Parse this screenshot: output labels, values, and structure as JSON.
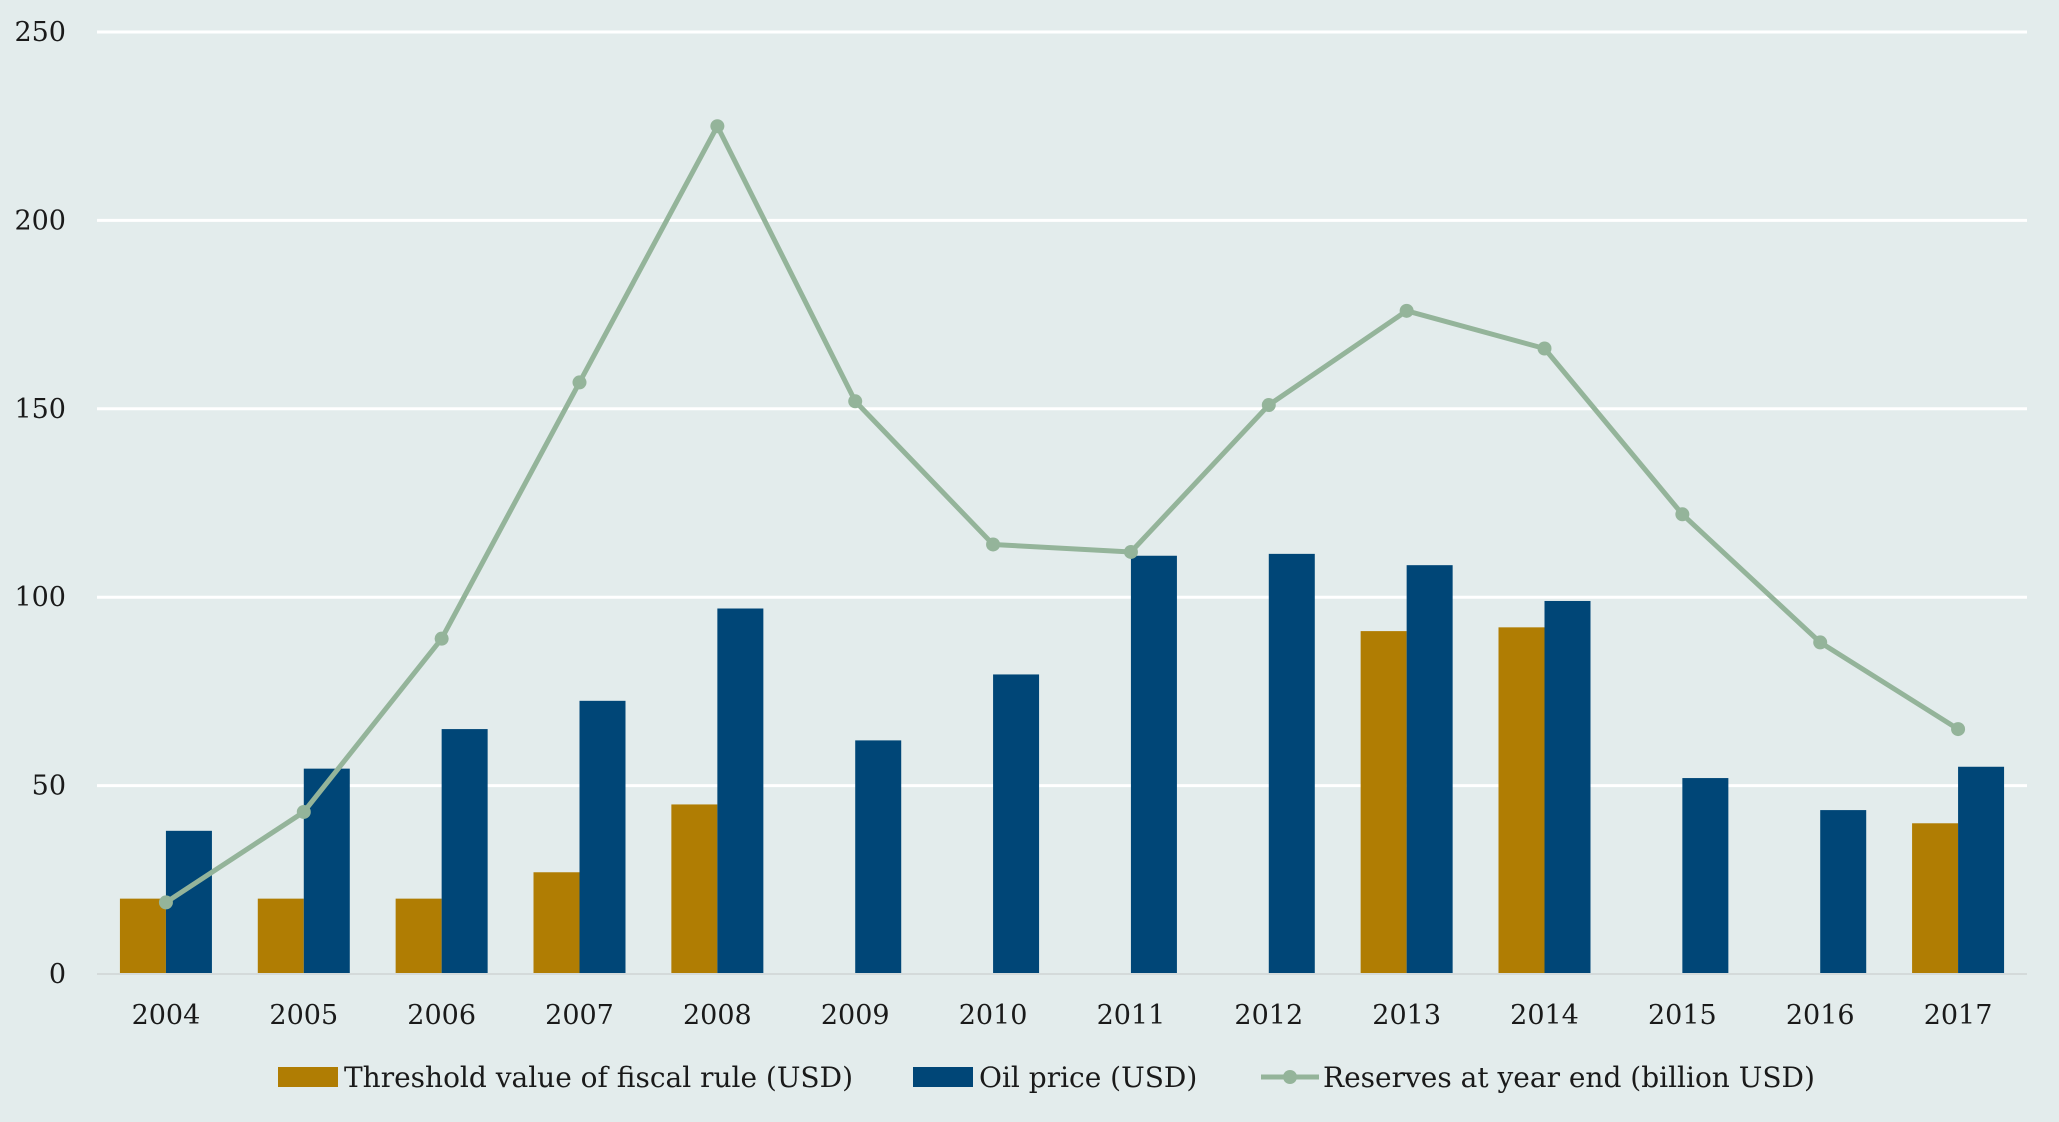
{
  "chart_data": {
    "type": "bar",
    "title": "",
    "xlabel": "",
    "ylabel": "",
    "categories": [
      "2004",
      "2005",
      "2006",
      "2007",
      "2008",
      "2009",
      "2010",
      "2011",
      "2012",
      "2013",
      "2014",
      "2015",
      "2016",
      "2017"
    ],
    "ylim": [
      0,
      250
    ],
    "yticks": [
      0,
      50,
      100,
      150,
      200,
      250
    ],
    "grid": true,
    "legend_position": "bottom",
    "series": [
      {
        "name": "Threshold value of fiscal rule (USD)",
        "type": "bar",
        "color": "#b07d03",
        "values": [
          20,
          20,
          20,
          27,
          45,
          null,
          null,
          null,
          null,
          91,
          92,
          null,
          null,
          40
        ]
      },
      {
        "name": "Oil price (USD)",
        "type": "bar",
        "color": "#004677",
        "values": [
          38,
          54.5,
          65,
          72.5,
          97,
          62,
          79.5,
          111,
          111.5,
          108.5,
          99,
          52,
          43.5,
          55
        ]
      },
      {
        "name": "Reserves at year end (billion USD)",
        "type": "line",
        "color": "#94b49a",
        "values": [
          19,
          43,
          89,
          157,
          225,
          152,
          114,
          112,
          151,
          176,
          166,
          122,
          88,
          65
        ]
      }
    ]
  }
}
